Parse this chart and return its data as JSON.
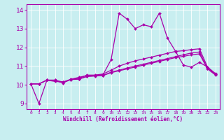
{
  "xlabel": "Windchill (Refroidissement éolien,°C)",
  "bg_color": "#c8eef0",
  "line_color": "#aa00aa",
  "grid_color": "#ffffff",
  "xlim": [
    -0.5,
    23.5
  ],
  "ylim": [
    8.7,
    14.3
  ],
  "yticks": [
    9,
    10,
    11,
    12,
    13,
    14
  ],
  "xticks": [
    0,
    1,
    2,
    3,
    4,
    5,
    6,
    7,
    8,
    9,
    10,
    11,
    12,
    13,
    14,
    15,
    16,
    17,
    18,
    19,
    20,
    21,
    22,
    23
  ],
  "lines": [
    {
      "x": [
        0,
        1,
        2,
        3,
        4,
        5,
        6,
        7,
        8,
        9,
        10,
        11,
        12,
        13,
        14,
        15,
        16,
        17,
        18,
        19,
        20,
        21,
        22,
        23
      ],
      "y": [
        10.05,
        9.0,
        10.25,
        10.25,
        10.1,
        10.3,
        10.4,
        10.5,
        10.5,
        10.55,
        11.35,
        13.82,
        13.5,
        13.0,
        13.2,
        13.1,
        13.82,
        12.5,
        11.8,
        11.05,
        10.95,
        11.2,
        10.95,
        10.55
      ],
      "marker": "D",
      "markersize": 2.0,
      "linewidth": 0.9
    },
    {
      "x": [
        0,
        1,
        2,
        3,
        4,
        5,
        6,
        7,
        8,
        9,
        10,
        11,
        12,
        13,
        14,
        15,
        16,
        17,
        18,
        19,
        20,
        21,
        22,
        23
      ],
      "y": [
        10.05,
        10.05,
        10.25,
        10.25,
        10.15,
        10.3,
        10.35,
        10.52,
        10.52,
        10.58,
        10.78,
        11.0,
        11.15,
        11.28,
        11.38,
        11.48,
        11.58,
        11.68,
        11.78,
        11.82,
        11.88,
        11.92,
        10.95,
        10.6
      ],
      "marker": "D",
      "markersize": 2.0,
      "linewidth": 0.9
    },
    {
      "x": [
        0,
        1,
        2,
        3,
        4,
        5,
        6,
        7,
        8,
        9,
        10,
        11,
        12,
        13,
        14,
        15,
        16,
        17,
        18,
        19,
        20,
        21,
        22,
        23
      ],
      "y": [
        10.05,
        10.05,
        10.25,
        10.18,
        10.15,
        10.28,
        10.32,
        10.45,
        10.48,
        10.5,
        10.68,
        10.78,
        10.9,
        11.0,
        11.1,
        11.2,
        11.3,
        11.4,
        11.5,
        11.6,
        11.7,
        11.75,
        10.88,
        10.55
      ],
      "marker": "D",
      "markersize": 2.0,
      "linewidth": 0.9
    },
    {
      "x": [
        0,
        1,
        2,
        3,
        4,
        5,
        6,
        7,
        8,
        9,
        10,
        11,
        12,
        13,
        14,
        15,
        16,
        17,
        18,
        19,
        20,
        21,
        22,
        23
      ],
      "y": [
        10.05,
        10.05,
        10.25,
        10.22,
        10.12,
        10.28,
        10.3,
        10.45,
        10.47,
        10.5,
        10.65,
        10.75,
        10.85,
        10.95,
        11.05,
        11.15,
        11.25,
        11.35,
        11.45,
        11.52,
        11.6,
        11.65,
        10.85,
        10.52
      ],
      "marker": "D",
      "markersize": 2.0,
      "linewidth": 0.9
    }
  ]
}
